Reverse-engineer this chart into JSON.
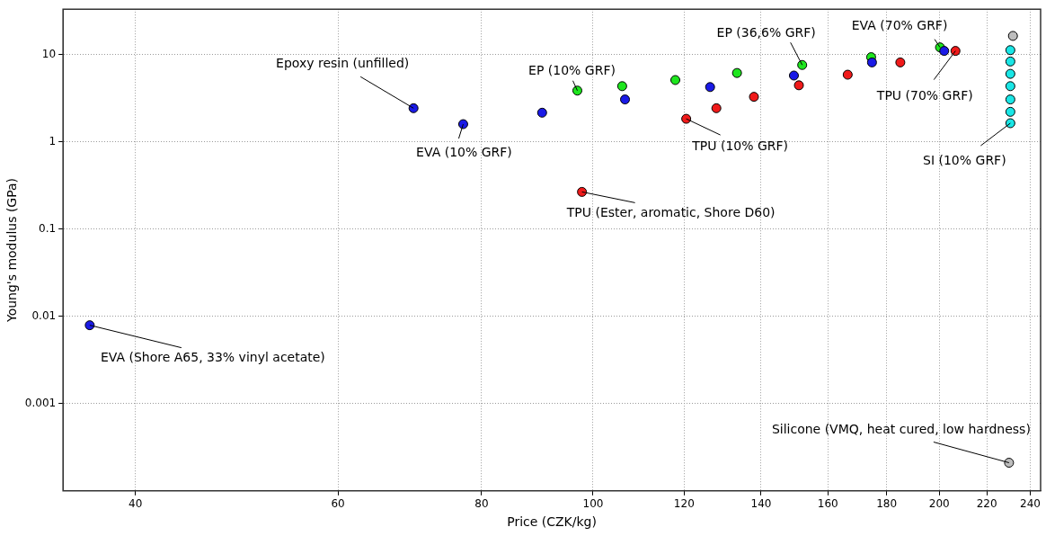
{
  "chart_data": {
    "type": "scatter",
    "xlabel": "Price (CZK/kg)",
    "ylabel": "Young's modulus (GPa)",
    "log": "xy",
    "grid": true,
    "marker": "circle",
    "xlim": [
      34.6,
      245
    ],
    "xticks": [
      40,
      60,
      80,
      100,
      120,
      140,
      160,
      180,
      200,
      220,
      240
    ],
    "ylim": [
      0.0001,
      33
    ],
    "yticks": [
      0.001,
      0.01,
      0.1,
      1,
      10
    ],
    "series": [
      {
        "color": "#1a1ae6",
        "x": [
          36.5,
          69.8,
          77.1,
          90.3,
          106.6,
          126.4,
          149.5,
          174.8,
          202
        ],
        "values": [
          0.0079,
          2.42,
          1.59,
          2.15,
          3.05,
          4.23,
          5.73,
          8.1,
          10.97
        ]
      },
      {
        "color": "#1ee61e",
        "x": [
          96.9,
          106,
          117.9,
          133.4,
          152,
          174.5,
          200.3
        ],
        "values": [
          3.85,
          4.33,
          5.09,
          6.13,
          7.57,
          9.3,
          12.05
        ]
      },
      {
        "color": "#f01a1a",
        "x": [
          97.8,
          120.5,
          128,
          138,
          151,
          166.5,
          185,
          206.6
        ],
        "values": [
          0.266,
          1.83,
          2.42,
          3.27,
          4.43,
          5.86,
          8.1,
          10.97
        ]
      },
      {
        "color": "#1ae6e6",
        "x": [
          230.6,
          230.6,
          230.6,
          230.6,
          230.6,
          230.6,
          230.6
        ],
        "values": [
          11.2,
          8.3,
          5.99,
          4.33,
          3.05,
          2.2,
          1.63
        ]
      },
      {
        "color": "#bdbdbd",
        "x": [
          231.8,
          230
        ],
        "values": [
          16.3,
          0.00021
        ]
      }
    ],
    "annotations": [
      {
        "text": "Epoxy resin (unfilled)",
        "x": 69.8,
        "y": 2.42
      },
      {
        "text": "EVA (10% GRF)",
        "x": 77.1,
        "y": 1.59
      },
      {
        "text": "EP (10% GRF)",
        "x": 96.9,
        "y": 3.85
      },
      {
        "text": "TPU (Ester, aromatic, Shore D60)",
        "x": 97.8,
        "y": 0.266
      },
      {
        "text": "TPU (10% GRF)",
        "x": 120.5,
        "y": 1.83
      },
      {
        "text": "EP (36,6% GRF)",
        "x": 152,
        "y": 7.57
      },
      {
        "text": "EVA (70% GRF)",
        "x": 200.3,
        "y": 12.05
      },
      {
        "text": "TPU (70% GRF)",
        "x": 206.6,
        "y": 10.97
      },
      {
        "text": "SI (10% GRF)",
        "x": 230.6,
        "y": 1.63
      },
      {
        "text": "EVA (Shore A65, 33% vinyl acetate)",
        "x": 36.5,
        "y": 0.0079
      },
      {
        "text": "Silicone (VMQ, heat cured, low hardness)",
        "x": 230,
        "y": 0.00021
      }
    ]
  }
}
